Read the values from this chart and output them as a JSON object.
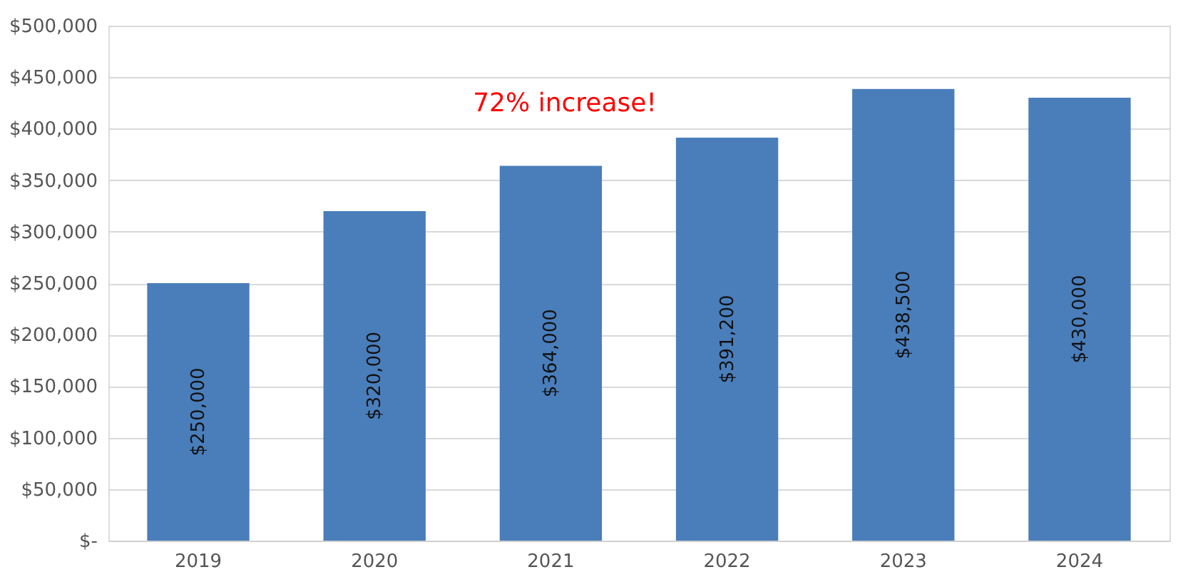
{
  "chart_data": {
    "type": "bar",
    "categories": [
      "2019",
      "2020",
      "2021",
      "2022",
      "2023",
      "2024"
    ],
    "values": [
      250000,
      320000,
      364000,
      391200,
      438500,
      430000
    ],
    "color": "#4a7ebb",
    "ylim": [
      0,
      500000
    ],
    "yticks": [
      {
        "value": 0,
        "label": "$-"
      },
      {
        "value": 50000,
        "label": "$50,000"
      },
      {
        "value": 100000,
        "label": "$100,000"
      },
      {
        "value": 150000,
        "label": "$150,000"
      },
      {
        "value": 200000,
        "label": "$200,000"
      },
      {
        "value": 250000,
        "label": "$250,000"
      },
      {
        "value": 300000,
        "label": "$300,000"
      },
      {
        "value": 350000,
        "label": "$350,000"
      },
      {
        "value": 400000,
        "label": "$400,000"
      },
      {
        "value": 450000,
        "label": "$450,000"
      },
      {
        "value": 500000,
        "label": "$500,000"
      }
    ],
    "grid": "y",
    "value_labels": [
      "$250,000",
      "$320,000",
      "$364,000",
      "$391,200",
      "$438,500",
      "$430,000"
    ],
    "annotations": [
      "72% increase!"
    ]
  }
}
